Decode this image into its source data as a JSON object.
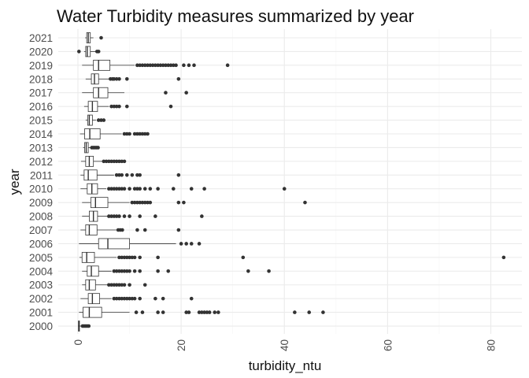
{
  "chart_data": {
    "type": "boxplot",
    "orientation": "horizontal",
    "title": "Water Turbidity measures summarized by year",
    "xlabel": "turbidity_ntu",
    "ylabel": "year",
    "xlim": [
      -1,
      84
    ],
    "xticks": [
      0,
      20,
      40,
      60,
      80
    ],
    "tick_label_rotation": "vertical",
    "grid": true,
    "theme": "minimal",
    "colors": {
      "box_stroke": "#333333",
      "box_fill": "#ffffff",
      "outlier": "#333333",
      "grid_major": "#ebebeb",
      "grid_minor": "#f5f5f5"
    },
    "series": [
      {
        "year": "2000",
        "min": 0.0,
        "q1": 0.1,
        "median": 0.2,
        "q3": 0.3,
        "max": 0.7,
        "outliers": [
          0.9,
          1.2,
          1.5,
          1.8,
          2.1
        ]
      },
      {
        "year": "2001",
        "min": 0.2,
        "q1": 1.0,
        "median": 2.2,
        "q3": 4.6,
        "max": 10.0,
        "outliers": [
          11.3,
          12.5,
          15.5,
          16.5,
          21.0,
          21.5,
          23.5,
          24.0,
          24.5,
          25.0,
          25.5,
          26.5,
          27.2,
          42.0,
          44.8,
          47.5
        ]
      },
      {
        "year": "2002",
        "min": 0.5,
        "q1": 2.0,
        "median": 2.8,
        "q3": 4.2,
        "max": 6.5,
        "outliers": [
          7.0,
          7.5,
          8.0,
          8.5,
          9.0,
          9.5,
          10.0,
          10.5,
          11.0,
          12.0,
          15.0,
          16.5,
          22.0
        ]
      },
      {
        "year": "2003",
        "min": 0.8,
        "q1": 1.5,
        "median": 2.2,
        "q3": 3.4,
        "max": 5.8,
        "outliers": [
          6.0,
          6.5,
          7.0,
          7.5,
          8.0,
          8.5,
          9.0,
          10.0,
          13.0
        ]
      },
      {
        "year": "2004",
        "min": 0.8,
        "q1": 1.8,
        "median": 2.6,
        "q3": 4.0,
        "max": 6.5,
        "outliers": [
          7.0,
          7.5,
          8.0,
          8.5,
          9.0,
          9.5,
          10.0,
          11.0,
          12.0,
          15.5,
          17.5,
          33.0,
          37.0
        ]
      },
      {
        "year": "2005",
        "min": 0.3,
        "q1": 0.8,
        "median": 1.7,
        "q3": 3.2,
        "max": 7.5,
        "outliers": [
          8.0,
          8.5,
          9.0,
          9.5,
          10.0,
          10.5,
          11.0,
          12.0,
          15.5,
          32.0,
          82.5
        ]
      },
      {
        "year": "2006",
        "min": 0.2,
        "q1": 4.0,
        "median": 5.8,
        "q3": 10.0,
        "max": 19.0,
        "outliers": [
          20.0,
          21.0,
          22.0,
          23.5
        ]
      },
      {
        "year": "2007",
        "min": 0.5,
        "q1": 1.5,
        "median": 2.2,
        "q3": 3.7,
        "max": 7.5,
        "outliers": [
          7.8,
          8.2,
          8.6,
          11.5,
          13.0,
          19.5
        ]
      },
      {
        "year": "2008",
        "min": 0.8,
        "q1": 2.2,
        "median": 3.0,
        "q3": 3.8,
        "max": 5.8,
        "outliers": [
          6.0,
          6.5,
          7.0,
          7.5,
          8.0,
          9.0,
          10.0,
          12.0,
          15.0,
          24.0
        ]
      },
      {
        "year": "2009",
        "min": 0.8,
        "q1": 2.5,
        "median": 3.4,
        "q3": 5.8,
        "max": 10.0,
        "outliers": [
          10.5,
          11.0,
          11.5,
          12.0,
          12.5,
          13.0,
          13.5,
          14.0,
          19.5,
          20.5,
          44.0
        ]
      },
      {
        "year": "2010",
        "min": 0.5,
        "q1": 1.8,
        "median": 2.7,
        "q3": 3.8,
        "max": 5.5,
        "outliers": [
          6.0,
          6.5,
          7.0,
          7.5,
          8.0,
          8.5,
          9.0,
          10.0,
          11.0,
          11.5,
          12.0,
          13.0,
          14.0,
          15.5,
          18.5,
          22.0,
          24.5,
          40.0
        ]
      },
      {
        "year": "2011",
        "min": 0.5,
        "q1": 1.2,
        "median": 2.0,
        "q3": 3.7,
        "max": 7.0,
        "outliers": [
          7.5,
          8.0,
          8.5,
          9.5,
          10.5,
          11.5,
          12.0,
          19.5
        ]
      },
      {
        "year": "2012",
        "min": 0.6,
        "q1": 1.5,
        "median": 2.2,
        "q3": 3.0,
        "max": 4.8,
        "outliers": [
          5.0,
          5.5,
          6.0,
          6.5,
          7.0,
          7.5,
          8.0,
          8.5,
          9.0
        ]
      },
      {
        "year": "2013",
        "min": 1.0,
        "q1": 1.3,
        "median": 1.6,
        "q3": 2.0,
        "max": 2.5,
        "outliers": [
          2.7,
          3.0,
          3.3,
          3.6,
          3.9
        ]
      },
      {
        "year": "2014",
        "min": 0.4,
        "q1": 1.3,
        "median": 2.3,
        "q3": 4.3,
        "max": 8.5,
        "outliers": [
          9.0,
          9.5,
          10.0,
          11.0,
          11.5,
          12.0,
          12.5,
          13.0,
          13.5
        ]
      },
      {
        "year": "2015",
        "min": 1.5,
        "q1": 1.9,
        "median": 2.2,
        "q3": 2.8,
        "max": 3.5,
        "outliers": [
          4.0,
          4.5,
          5.0
        ]
      },
      {
        "year": "2016",
        "min": 1.2,
        "q1": 2.0,
        "median": 2.8,
        "q3": 3.8,
        "max": 6.0,
        "outliers": [
          6.5,
          7.0,
          7.5,
          8.0,
          9.5,
          18.0
        ]
      },
      {
        "year": "2017",
        "min": 0.8,
        "q1": 3.0,
        "median": 4.0,
        "q3": 5.8,
        "max": 9.0,
        "outliers": [
          17.0,
          21.0
        ]
      },
      {
        "year": "2018",
        "min": 1.5,
        "q1": 2.6,
        "median": 3.2,
        "q3": 4.0,
        "max": 6.0,
        "outliers": [
          6.3,
          6.7,
          7.0,
          7.5,
          8.0,
          9.5,
          19.5
        ]
      },
      {
        "year": "2019",
        "min": 0.8,
        "q1": 3.0,
        "median": 4.0,
        "q3": 6.2,
        "max": 11.0,
        "outliers": [
          11.5,
          12.0,
          12.5,
          13.0,
          13.5,
          14.0,
          14.5,
          15.0,
          15.5,
          16.0,
          16.5,
          17.0,
          17.5,
          18.0,
          18.5,
          19.0,
          20.5,
          21.5,
          22.5,
          29.0
        ]
      },
      {
        "year": "2020",
        "min": 1.2,
        "q1": 1.5,
        "median": 1.8,
        "q3": 2.4,
        "max": 3.5,
        "outliers": [
          0.2,
          3.7,
          4.0
        ]
      },
      {
        "year": "2021",
        "min": 1.4,
        "q1": 1.7,
        "median": 2.0,
        "q3": 2.4,
        "max": 3.0,
        "outliers": [
          4.5
        ]
      }
    ]
  }
}
